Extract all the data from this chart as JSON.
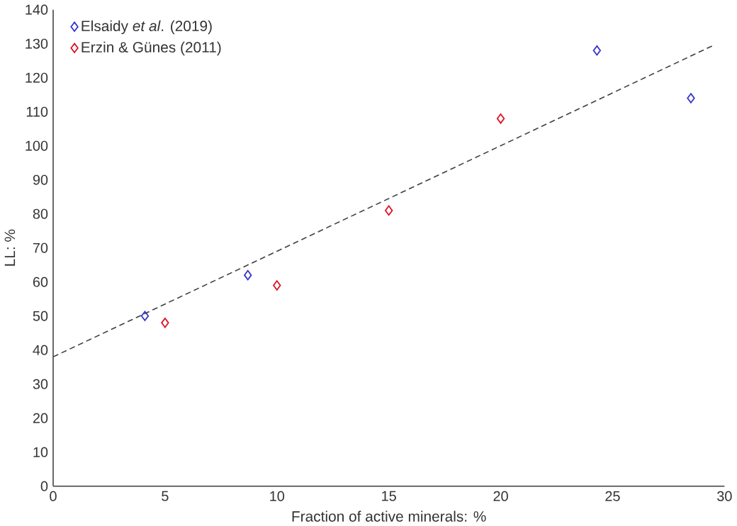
{
  "chart_data": {
    "type": "scatter",
    "xlabel": "Fraction of active minerals: %",
    "ylabel": "LL: %",
    "xlim": [
      0,
      30
    ],
    "xticks": [
      0,
      5,
      10,
      15,
      20,
      25,
      30
    ],
    "ylim": [
      0,
      140
    ],
    "yticks": [
      0,
      10,
      20,
      30,
      40,
      50,
      60,
      70,
      80,
      90,
      100,
      110,
      120,
      130,
      140
    ],
    "grid": false,
    "legend": "top left",
    "marker": "diamond",
    "series": [
      {
        "name": "Elsaidy *et al*. (2019)",
        "color": "#3333cc",
        "x": [
          4.1,
          8.7,
          24.3,
          28.5
        ],
        "values": [
          50,
          62,
          128,
          114
        ]
      },
      {
        "name": "Erzin & Günes (2011)",
        "color": "#dd1122",
        "x": [
          5,
          10,
          15,
          20
        ],
        "values": [
          48,
          59,
          81,
          108
        ]
      },
      {
        "type": "line",
        "color": "#404040",
        "marker": "none",
        "line_style": "dashed",
        "x": [
          0,
          29.5
        ],
        "values": [
          38,
          129.5
        ]
      }
    ]
  }
}
